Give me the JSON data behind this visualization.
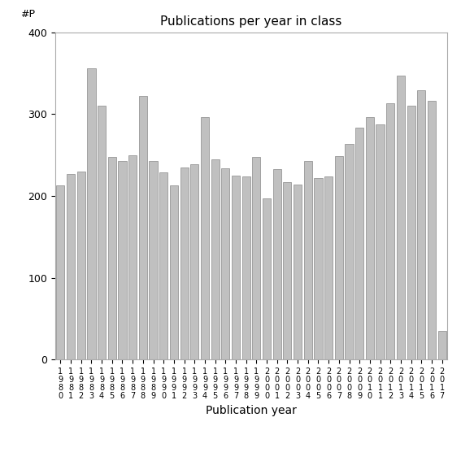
{
  "title": "Publications per year in class",
  "xlabel": "Publication year",
  "ylabel": "#P",
  "ylim": [
    0,
    400
  ],
  "yticks": [
    0,
    100,
    200,
    300,
    400
  ],
  "bar_color": "#c0c0c0",
  "bar_edgecolor": "#888888",
  "categories": [
    "1\n9\n8\n0",
    "1\n9\n8\n1",
    "1\n9\n8\n2",
    "1\n9\n8\n3",
    "1\n9\n8\n4",
    "1\n9\n8\n5",
    "1\n9\n8\n6",
    "1\n9\n8\n7",
    "1\n9\n8\n8",
    "1\n9\n8\n9",
    "1\n9\n9\n0",
    "1\n9\n9\n1",
    "1\n9\n9\n2",
    "1\n9\n9\n3",
    "1\n9\n9\n4",
    "1\n9\n9\n5",
    "1\n9\n9\n6",
    "1\n9\n9\n7",
    "1\n9\n9\n8",
    "1\n9\n9\n9",
    "2\n0\n0\n0",
    "2\n0\n0\n1",
    "2\n0\n0\n2",
    "2\n0\n0\n3",
    "2\n0\n0\n4",
    "2\n0\n0\n5",
    "2\n0\n0\n6",
    "2\n0\n0\n7",
    "2\n0\n0\n8",
    "2\n0\n0\n9",
    "2\n0\n1\n0",
    "2\n0\n1\n1",
    "2\n0\n1\n2",
    "2\n0\n1\n3",
    "2\n0\n1\n4",
    "2\n0\n1\n5",
    "2\n0\n1\n6",
    "2\n0\n1\n7"
  ],
  "values": [
    213,
    227,
    230,
    356,
    310,
    248,
    243,
    250,
    322,
    243,
    229,
    213,
    235,
    239,
    296,
    245,
    234,
    225,
    224,
    248,
    197,
    233,
    217,
    214,
    243,
    222,
    224,
    249,
    264,
    283,
    296,
    287,
    313,
    347,
    310,
    329,
    316,
    35
  ],
  "background_color": "#ffffff",
  "figsize": [
    5.67,
    5.67
  ],
  "dpi": 100,
  "title_fontsize": 11,
  "axis_label_fontsize": 10,
  "tick_fontsize": 9,
  "xtick_fontsize": 7
}
